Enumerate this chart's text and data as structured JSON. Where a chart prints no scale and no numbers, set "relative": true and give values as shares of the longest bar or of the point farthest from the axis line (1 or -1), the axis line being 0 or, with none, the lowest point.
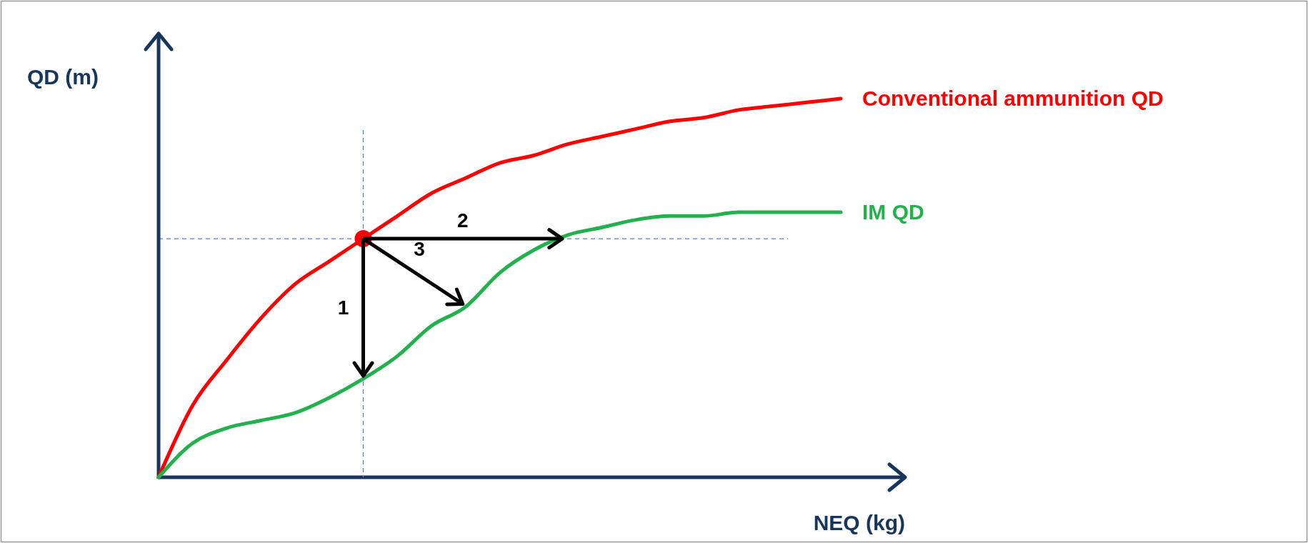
{
  "chart_data": {
    "type": "line",
    "relative": true,
    "xlabel": "NEQ (kg)",
    "ylabel": "QD (m)",
    "categories": [
      null,
      null,
      null,
      null,
      null,
      null,
      null,
      null,
      null,
      null,
      null,
      null,
      null,
      null,
      null,
      null,
      null,
      null,
      null,
      null,
      null
    ],
    "series": [
      {
        "name": "Conventional ammunition QD",
        "color": "#ff0000",
        "values": [
          0,
          0.19,
          0.31,
          0.42,
          0.51,
          0.57,
          0.63,
          0.69,
          0.75,
          0.79,
          0.83,
          0.85,
          0.88,
          0.9,
          0.92,
          0.94,
          0.95,
          0.97,
          0.98,
          0.99,
          1
        ]
      },
      {
        "name": "IM QD",
        "color": "#22b14c",
        "values": [
          0,
          0.09,
          0.13,
          0.15,
          0.17,
          0.21,
          0.26,
          0.32,
          0.4,
          0.45,
          0.54,
          0.6,
          0.64,
          0.66,
          0.68,
          0.69,
          0.69,
          0.7,
          0.7,
          0.7,
          0.7
        ]
      }
    ],
    "ref_lines": [
      {
        "axis": "y",
        "value": 0.63,
        "color": "#4f81bd",
        "line_style": "dashed"
      }
    ],
    "annotations": [
      "1",
      "2",
      "3"
    ]
  }
}
